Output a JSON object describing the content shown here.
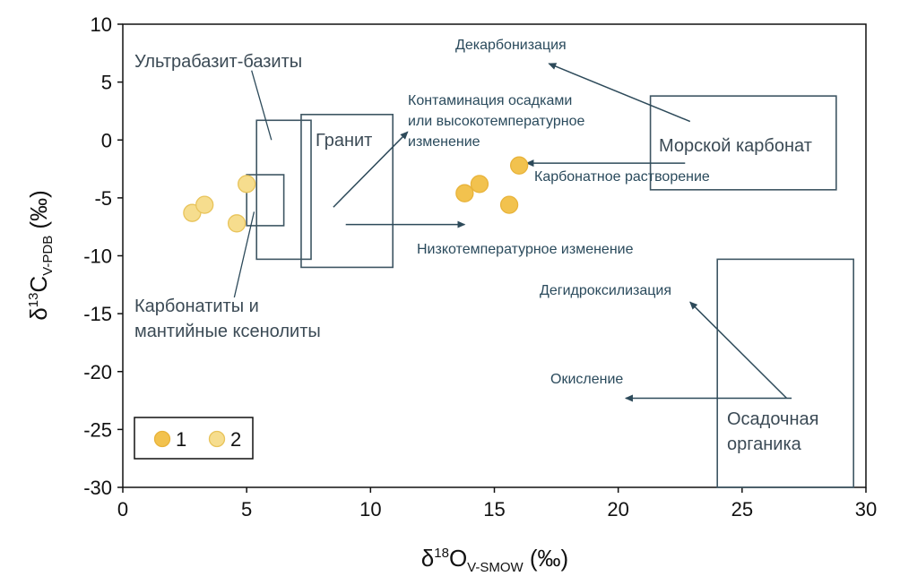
{
  "chart_data": {
    "type": "scatter",
    "xlim": [
      0,
      30
    ],
    "ylim": [
      -30,
      10
    ],
    "x_ticks": [
      0,
      5,
      10,
      15,
      20,
      25,
      30
    ],
    "y_ticks": [
      10,
      5,
      0,
      -5,
      -10,
      -15,
      -20,
      -25,
      -30
    ],
    "xlabel": {
      "main": "δ",
      "sup": "18",
      "main2": "O",
      "sub": "V-SMOW",
      "unit": " (‰)"
    },
    "ylabel": {
      "main": "δ",
      "sup": "13",
      "main2": "C",
      "sub": "V-PDB",
      "unit": " (‰)"
    },
    "grid": false,
    "legend": {
      "position": "bottom-left",
      "entries": [
        {
          "label": "1",
          "fill": "#f2c24e",
          "stroke": "#e8b33a"
        },
        {
          "label": "2",
          "fill": "#f6dd8e",
          "stroke": "#e8c35a"
        }
      ]
    },
    "series": [
      {
        "name": "1",
        "points": [
          [
            13.8,
            -4.6
          ],
          [
            14.4,
            -3.8
          ],
          [
            15.6,
            -5.6
          ],
          [
            16.0,
            -2.2
          ]
        ]
      },
      {
        "name": "2",
        "points": [
          [
            2.8,
            -6.3
          ],
          [
            3.3,
            -5.6
          ],
          [
            4.6,
            -7.2
          ],
          [
            5.0,
            -3.8
          ]
        ]
      }
    ],
    "boxes": [
      {
        "label": "Ультрабазит-базиты",
        "x": [
          5.4,
          7.6
        ],
        "y": [
          -10.3,
          1.7
        ]
      },
      {
        "label": "Гранит",
        "x": [
          7.2,
          10.9
        ],
        "y": [
          -11.0,
          2.2
        ]
      },
      {
        "label": "Карбонатиты и мантийные ксенолиты",
        "x": [
          5.0,
          6.5
        ],
        "y": [
          -7.4,
          -3.0
        ]
      },
      {
        "label": "Морской карбонат",
        "x": [
          21.3,
          28.8
        ],
        "y": [
          -4.3,
          3.8
        ]
      },
      {
        "label": "Осадочная органика",
        "x": [
          24.0,
          29.5
        ],
        "y": [
          -30.0,
          -10.3
        ]
      }
    ],
    "labels": {
      "ultrabasite": "Ультрабазит-базиты",
      "granite": "Гранит",
      "carbonatite_1": "Карбонатиты и",
      "carbonatite_2": "мантийные ксенолиты",
      "marine": "Морской карбонат",
      "organic_1": "Осадочная",
      "organic_2": "органика",
      "decarb": "Декарбонизация",
      "contam_1": "Контаминация осадками",
      "contam_2": "или высокотемпературное",
      "contam_3": "изменение",
      "carb_dissolution": "Карбонатное растворение",
      "lowtemp": "Низкотемпературное изменение",
      "dehydrox": "Дегидроксилизация",
      "oxidation": "Окисление"
    },
    "colors": {
      "box": "#3e5663",
      "arrow": "#2d4a5a",
      "leader": "#2d4a5a"
    }
  }
}
